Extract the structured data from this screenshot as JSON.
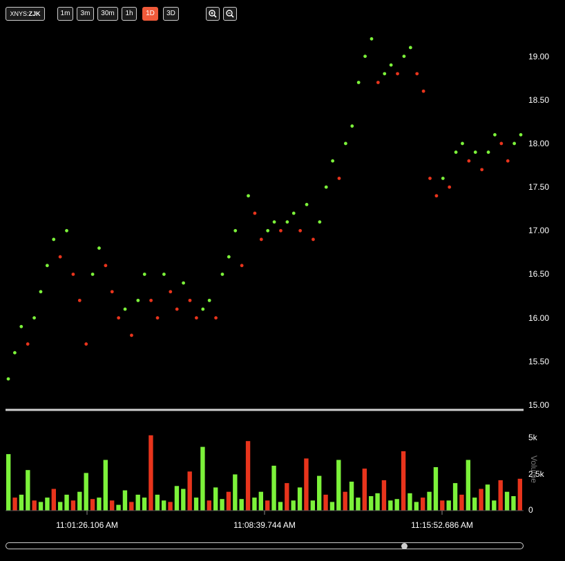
{
  "toolbar": {
    "exchange": "XNYS:",
    "ticker": "ZJK",
    "intervals": [
      "1m",
      "3m",
      "30m",
      "1h",
      "1D",
      "3D"
    ],
    "active_interval": "1D",
    "zoom_in_icon": "zoom-in-icon",
    "zoom_out_icon": "zoom-out-icon"
  },
  "colors": {
    "up": "#7cf23a",
    "down": "#e8341c",
    "background": "#000000",
    "axis": "#cfcfcf"
  },
  "chart_data": [
    {
      "type": "scatter",
      "title": "",
      "xlabel": "",
      "ylabel": "",
      "ylim": [
        15.0,
        19.25
      ],
      "y_ticks": [
        "15.00",
        "15.50",
        "16.00",
        "16.50",
        "17.00",
        "17.50",
        "18.00",
        "18.50",
        "19.00"
      ],
      "x_ticks": [
        "11:01:26.106 AM",
        "11:08:39.744 AM",
        "11:15:52.686 AM"
      ],
      "grid": false,
      "series": [
        {
          "values": [
            15.3,
            15.6,
            15.9,
            15.7,
            16.0,
            16.3,
            16.6,
            16.9,
            16.7,
            17.0,
            16.5,
            16.2,
            15.7,
            16.5,
            16.8,
            16.6,
            16.3,
            16.0,
            16.1,
            15.8,
            16.2,
            16.5,
            16.2,
            16.0,
            16.5,
            16.3,
            16.1,
            16.4,
            16.2,
            16.0,
            16.1,
            16.2,
            16.0,
            16.5,
            16.7,
            17.0,
            16.6,
            17.4,
            17.2,
            16.9,
            17.0,
            17.1,
            17.0,
            17.1,
            17.2,
            17.0,
            17.3,
            16.9,
            17.1,
            17.5,
            17.8,
            17.6,
            18.0,
            18.2,
            18.7,
            19.0,
            19.2,
            18.7,
            18.8,
            18.9,
            18.8,
            19.0,
            19.1,
            18.8,
            18.6,
            17.6,
            17.4,
            17.6,
            17.5,
            17.9,
            18.0,
            17.8,
            17.9,
            17.7,
            17.9,
            18.1,
            18.0,
            17.8,
            18.0,
            18.1
          ]
        }
      ]
    },
    {
      "type": "bar",
      "title": "",
      "ylabel": "Volume",
      "ylim": [
        0,
        5000
      ],
      "y_ticks": [
        "0",
        "2.5k",
        "5k"
      ],
      "values": [
        3900,
        900,
        1100,
        2800,
        700,
        600,
        900,
        1500,
        600,
        1100,
        700,
        1300,
        2600,
        800,
        900,
        3500,
        700,
        400,
        1400,
        600,
        1100,
        900,
        5200,
        1100,
        700,
        600,
        1700,
        1500,
        2700,
        900,
        4400,
        700,
        1600,
        800,
        1300,
        2500,
        800,
        4800,
        900,
        1300,
        700,
        3100,
        600,
        1900,
        700,
        1600,
        3600,
        700,
        2400,
        1100,
        600,
        3500,
        1300,
        2000,
        900,
        2900,
        1000,
        1200,
        2100,
        700,
        800,
        4100,
        1200,
        600,
        900,
        1300,
        3000,
        700,
        700,
        1900,
        1100,
        3500,
        900,
        1500,
        1800,
        700,
        2100,
        1300,
        1000,
        2200
      ]
    }
  ]
}
